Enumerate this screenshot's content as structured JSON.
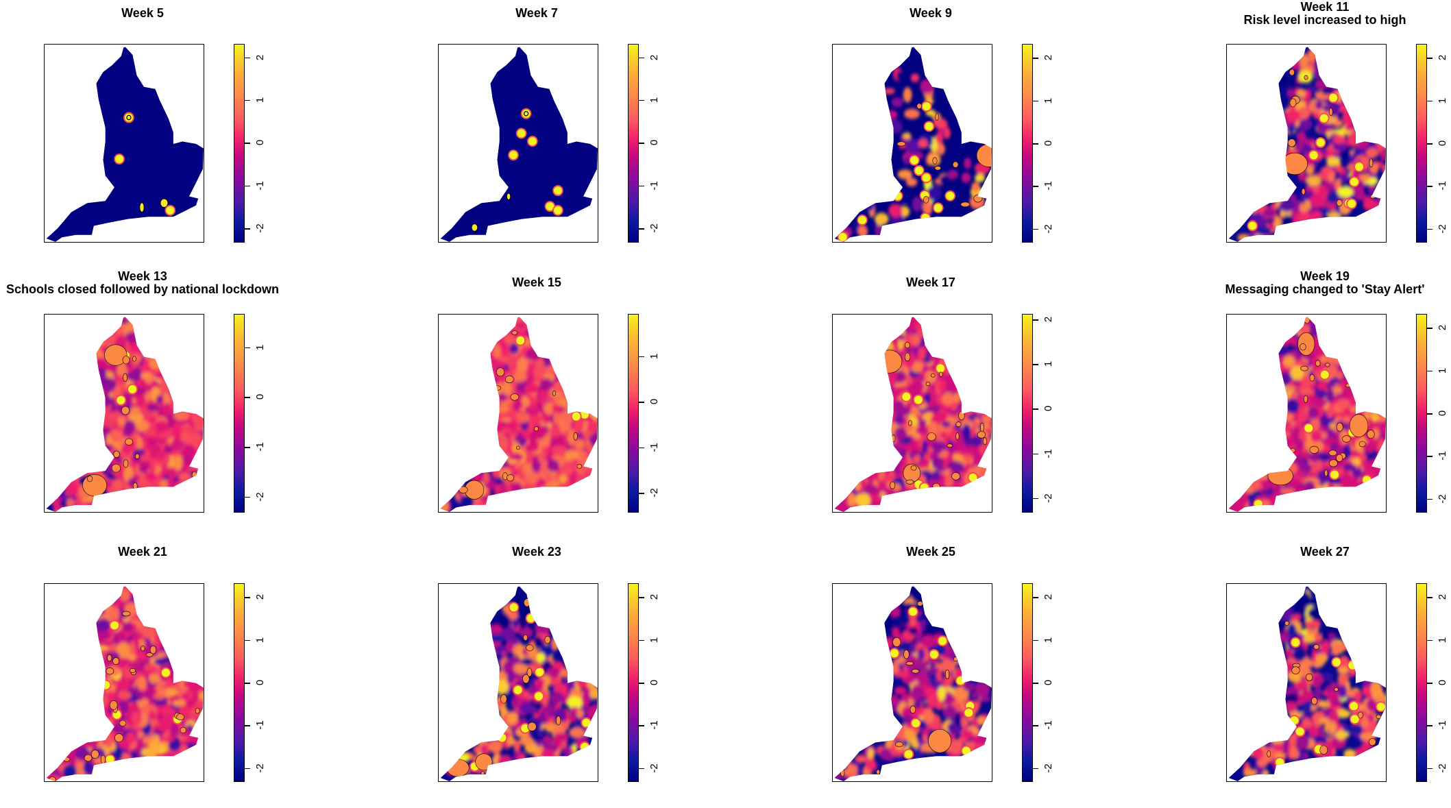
{
  "chart_data": {
    "type": "heatmap",
    "title": "",
    "colorbar_palette": [
      "#000080",
      "#8a0a9f",
      "#f0206a",
      "#fc8a48",
      "#f4f520"
    ],
    "contour_color": "#000000",
    "panels": [
      {
        "title": "Week 5",
        "subtitle": "",
        "range": [
          -2.31,
          2.29
        ],
        "ticks": [
          2,
          1,
          0,
          -1,
          -2
        ],
        "pattern": "sparse"
      },
      {
        "title": "Week 7",
        "subtitle": "",
        "range": [
          -2.31,
          2.29
        ],
        "ticks": [
          2,
          1,
          0,
          -1,
          -2
        ],
        "pattern": "sparse"
      },
      {
        "title": "Week 9",
        "subtitle": "",
        "range": [
          -2.3,
          2.3
        ],
        "ticks": [
          2,
          1,
          0,
          -1,
          -2
        ],
        "pattern": "spotted"
      },
      {
        "title": "Week 11",
        "subtitle": "Risk level increased to high",
        "range": [
          -2.3,
          2.3
        ],
        "ticks": [
          2,
          1,
          0,
          -1,
          -2
        ],
        "pattern": "mixed"
      },
      {
        "title": "Week 13",
        "subtitle": "Schools closed followed by national lockdown",
        "range": [
          -2.3,
          1.65
        ],
        "ticks": [
          1,
          0,
          -1,
          -2
        ],
        "pattern": "high"
      },
      {
        "title": "Week 15",
        "subtitle": "",
        "range": [
          -2.41,
          1.91
        ],
        "ticks": [
          1,
          0,
          -1,
          -2
        ],
        "pattern": "high"
      },
      {
        "title": "Week 17",
        "subtitle": "",
        "range": [
          -2.3,
          2.1
        ],
        "ticks": [
          2,
          1,
          0,
          -1,
          -2
        ],
        "pattern": "medium"
      },
      {
        "title": "Week 19",
        "subtitle": "Messaging changed to 'Stay Alert'",
        "range": [
          -2.3,
          2.3
        ],
        "ticks": [
          2,
          1,
          0,
          -1,
          -2
        ],
        "pattern": "medium"
      },
      {
        "title": "Week 21",
        "subtitle": "",
        "range": [
          -2.3,
          2.3
        ],
        "ticks": [
          2,
          1,
          0,
          -1,
          -2
        ],
        "pattern": "medium"
      },
      {
        "title": "Week 23",
        "subtitle": "",
        "range": [
          -2.3,
          2.3
        ],
        "ticks": [
          2,
          1,
          0,
          -1,
          -2
        ],
        "pattern": "mixed"
      },
      {
        "title": "Week 25",
        "subtitle": "",
        "range": [
          -2.3,
          2.3
        ],
        "ticks": [
          2,
          1,
          0,
          -1,
          -2
        ],
        "pattern": "mixed"
      },
      {
        "title": "Week 27",
        "subtitle": "",
        "range": [
          -2.3,
          2.3
        ],
        "ticks": [
          2,
          1,
          0,
          -1,
          -2
        ],
        "pattern": "mixed"
      }
    ]
  }
}
